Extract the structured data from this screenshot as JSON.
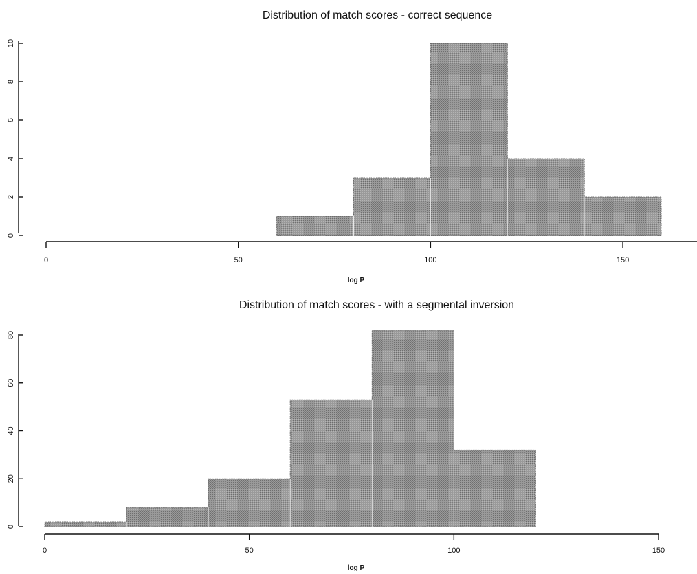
{
  "chart_data": [
    {
      "type": "bar",
      "title": "Distribution of match scores - correct sequence",
      "xlabel": "log P",
      "ylabel": "",
      "bin_edges": [
        60,
        80,
        100,
        120,
        140,
        160
      ],
      "values": [
        1,
        3,
        10,
        4,
        2
      ],
      "xlim": [
        0,
        160
      ],
      "ylim": [
        0,
        10
      ],
      "xticks": [
        "0",
        "50",
        "100",
        "150"
      ],
      "yticks": [
        "0",
        "2",
        "4",
        "6",
        "8",
        "10"
      ],
      "grid": false,
      "bar_color": "#8f8f8f"
    },
    {
      "type": "bar",
      "title": "Distribution of match scores - with a segmental inversion",
      "xlabel": "log P",
      "ylabel": "",
      "bin_edges": [
        0,
        20,
        40,
        60,
        80,
        100,
        120
      ],
      "values": [
        2,
        8,
        20,
        53,
        82,
        32
      ],
      "xlim": [
        0,
        150
      ],
      "ylim": [
        0,
        80
      ],
      "xticks": [
        "0",
        "50",
        "100",
        "150"
      ],
      "yticks": [
        "0",
        "20",
        "40",
        "60",
        "80"
      ],
      "grid": false,
      "bar_color": "#8f8f8f"
    }
  ]
}
